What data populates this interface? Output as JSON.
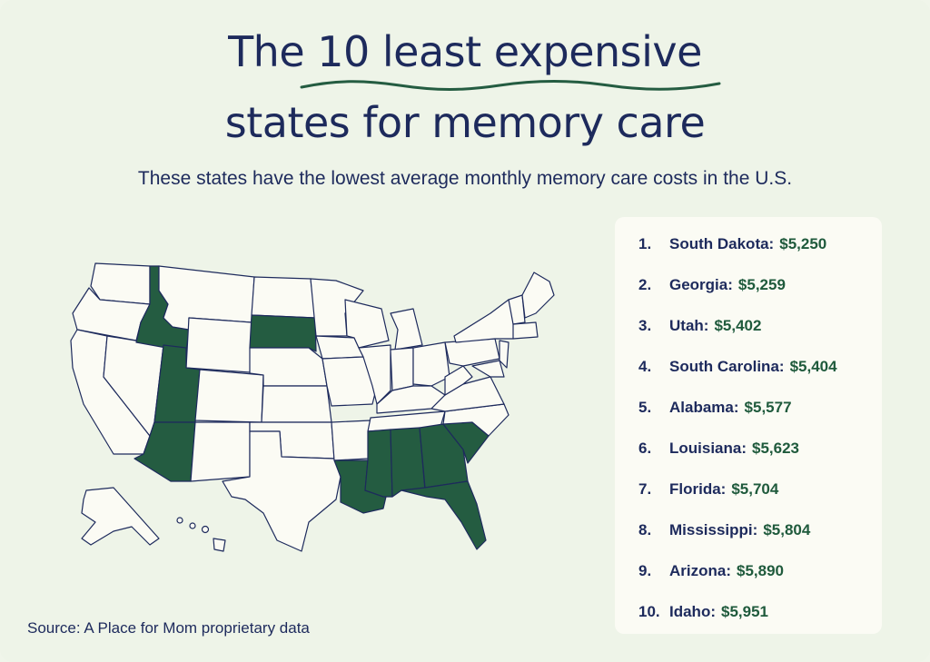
{
  "title": {
    "line1": "The 10 least expensive",
    "line2": "states for memory care"
  },
  "subtitle": "These states have the lowest average monthly memory care costs in the U.S.",
  "colors": {
    "highlight": "#245c41",
    "state_fill": "#fbfbf4",
    "border": "#1d2a5c",
    "background": "#eef4e8"
  },
  "map": {
    "highlighted_states": [
      "South Dakota",
      "Georgia",
      "Utah",
      "South Carolina",
      "Alabama",
      "Louisiana",
      "Florida",
      "Mississippi",
      "Arizona",
      "Idaho"
    ]
  },
  "rankings": [
    {
      "rank": "1.",
      "state": "South Dakota:",
      "cost": "$5,250"
    },
    {
      "rank": "2.",
      "state": "Georgia:",
      "cost": "$5,259"
    },
    {
      "rank": "3.",
      "state": "Utah:",
      "cost": "$5,402"
    },
    {
      "rank": "4.",
      "state": "South Carolina:",
      "cost": "$5,404"
    },
    {
      "rank": "5.",
      "state": "Alabama:",
      "cost": "$5,577"
    },
    {
      "rank": "6.",
      "state": "Louisiana:",
      "cost": "$5,623"
    },
    {
      "rank": "7.",
      "state": "Florida:",
      "cost": "$5,704"
    },
    {
      "rank": "8.",
      "state": "Mississippi:",
      "cost": "$5,804"
    },
    {
      "rank": "9.",
      "state": "Arizona:",
      "cost": "$5,890"
    },
    {
      "rank": "10.",
      "state": "Idaho:",
      "cost": "$5,951"
    }
  ],
  "source": "Source: A Place for Mom proprietary data"
}
